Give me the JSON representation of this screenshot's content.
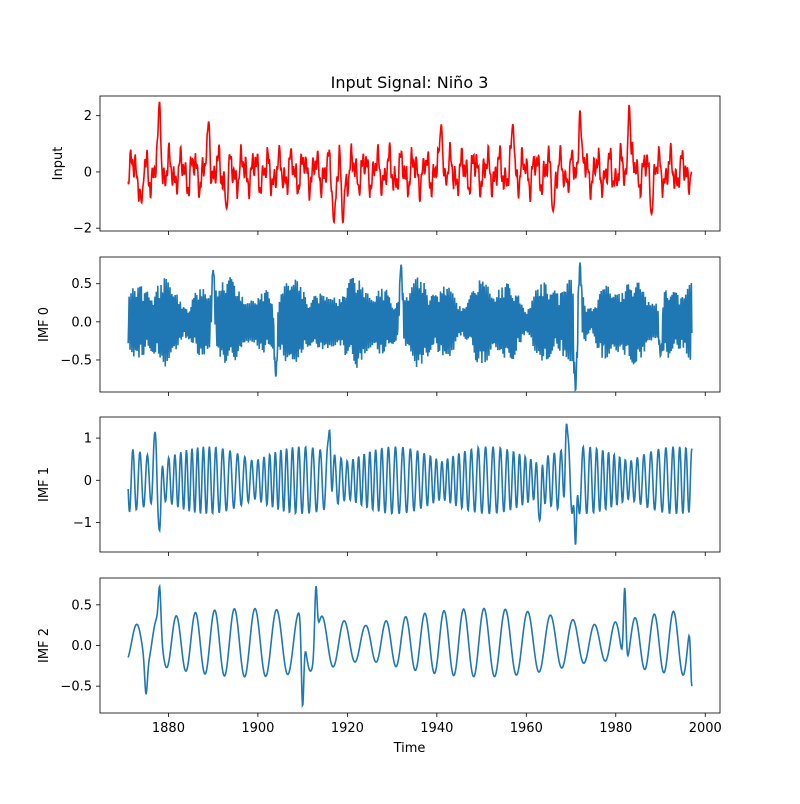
{
  "chart_data": {
    "type": "line",
    "title": "Input Signal: Niño 3",
    "xlabel": "Time",
    "xlim": [
      1864.7,
      2003.3
    ],
    "xticks": [
      1880,
      1900,
      1920,
      1940,
      1960,
      1980,
      2000
    ],
    "x_range": [
      1871,
      1997
    ],
    "panels": [
      {
        "ylabel": "Input",
        "ylim": [
          -2.1,
          2.7
        ],
        "yticks": [
          2,
          0,
          -2
        ],
        "color": "#ff0000",
        "amplitude": 1.0,
        "peaks": [
          {
            "x": 1878,
            "y": 2.5
          },
          {
            "x": 1874,
            "y": -1.1
          },
          {
            "x": 1889,
            "y": 1.8
          },
          {
            "x": 1893,
            "y": -1.3
          },
          {
            "x": 1917,
            "y": -1.8
          },
          {
            "x": 1919,
            "y": -1.8
          },
          {
            "x": 1941,
            "y": 1.7
          },
          {
            "x": 1957,
            "y": 1.7
          },
          {
            "x": 1966,
            "y": -1.4
          },
          {
            "x": 1972,
            "y": 2.2
          },
          {
            "x": 1983,
            "y": 2.4
          },
          {
            "x": 1988,
            "y": -1.5
          },
          {
            "x": 1997,
            "y": 0.0
          }
        ]
      },
      {
        "ylabel": "IMF 0",
        "ylim": [
          -0.92,
          0.85
        ],
        "yticks": [
          0.5,
          0.0,
          -0.5
        ],
        "color": "#1f77b4",
        "amplitude": 0.7,
        "peaks": [
          {
            "x": 1890,
            "y": 0.68
          },
          {
            "x": 1904,
            "y": -0.72
          },
          {
            "x": 1932,
            "y": 0.75
          },
          {
            "x": 1972,
            "y": 0.78
          },
          {
            "x": 1971,
            "y": -0.9
          },
          {
            "x": 1990,
            "y": -0.45
          }
        ]
      },
      {
        "ylabel": "IMF 1",
        "ylim": [
          -1.7,
          1.5
        ],
        "yticks": [
          1,
          0,
          -1
        ],
        "color": "#1f77b4",
        "amplitude": 1.0,
        "peaks": [
          {
            "x": 1877,
            "y": 1.15
          },
          {
            "x": 1878,
            "y": -1.2
          },
          {
            "x": 1916,
            "y": 1.2
          },
          {
            "x": 1969,
            "y": 1.35
          },
          {
            "x": 1971,
            "y": -1.55
          },
          {
            "x": 1963,
            "y": -0.95
          }
        ]
      },
      {
        "ylabel": "IMF 2",
        "ylim": [
          -0.83,
          0.83
        ],
        "yticks": [
          0.5,
          0.0,
          -0.5
        ],
        "color": "#1f77b4",
        "amplitude": 0.7,
        "peaks": [
          {
            "x": 1878,
            "y": 0.73
          },
          {
            "x": 1910,
            "y": -0.75
          },
          {
            "x": 1913,
            "y": 0.73
          },
          {
            "x": 1982,
            "y": 0.71
          },
          {
            "x": 1875,
            "y": -0.6
          },
          {
            "x": 1997,
            "y": -0.5
          }
        ]
      }
    ]
  }
}
